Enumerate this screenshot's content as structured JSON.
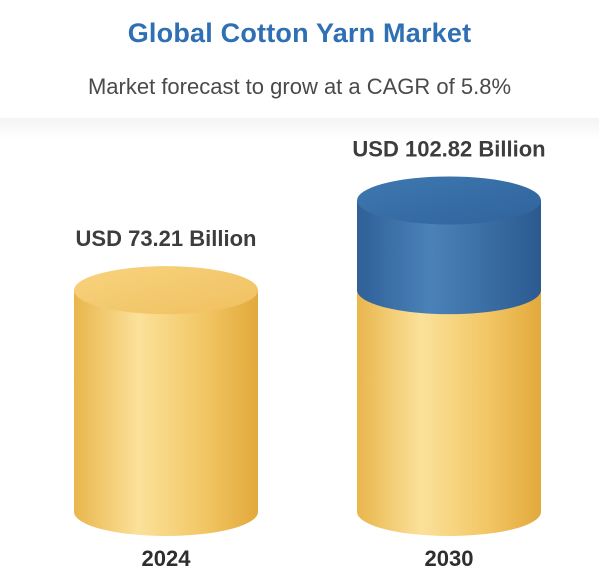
{
  "title": "Global Cotton Yarn Market",
  "subtitle": "Market forecast to grow at a CAGR of 5.8%",
  "colors": {
    "title": "#2f6fb3",
    "base_cylinder": "#f0c868",
    "growth_cylinder": "#3e74ab"
  },
  "chart_data": {
    "type": "bar",
    "categories": [
      "2024",
      "2030"
    ],
    "values": [
      73.21,
      102.82
    ],
    "data_labels": [
      "USD 73.21 Billion",
      "USD 102.82 Billion"
    ],
    "unit": "USD Billion",
    "cagr_percent": 5.8,
    "bar_style": "cylinder",
    "stacked_highlight": "portion of 2030 above 2024 value shown in blue"
  }
}
